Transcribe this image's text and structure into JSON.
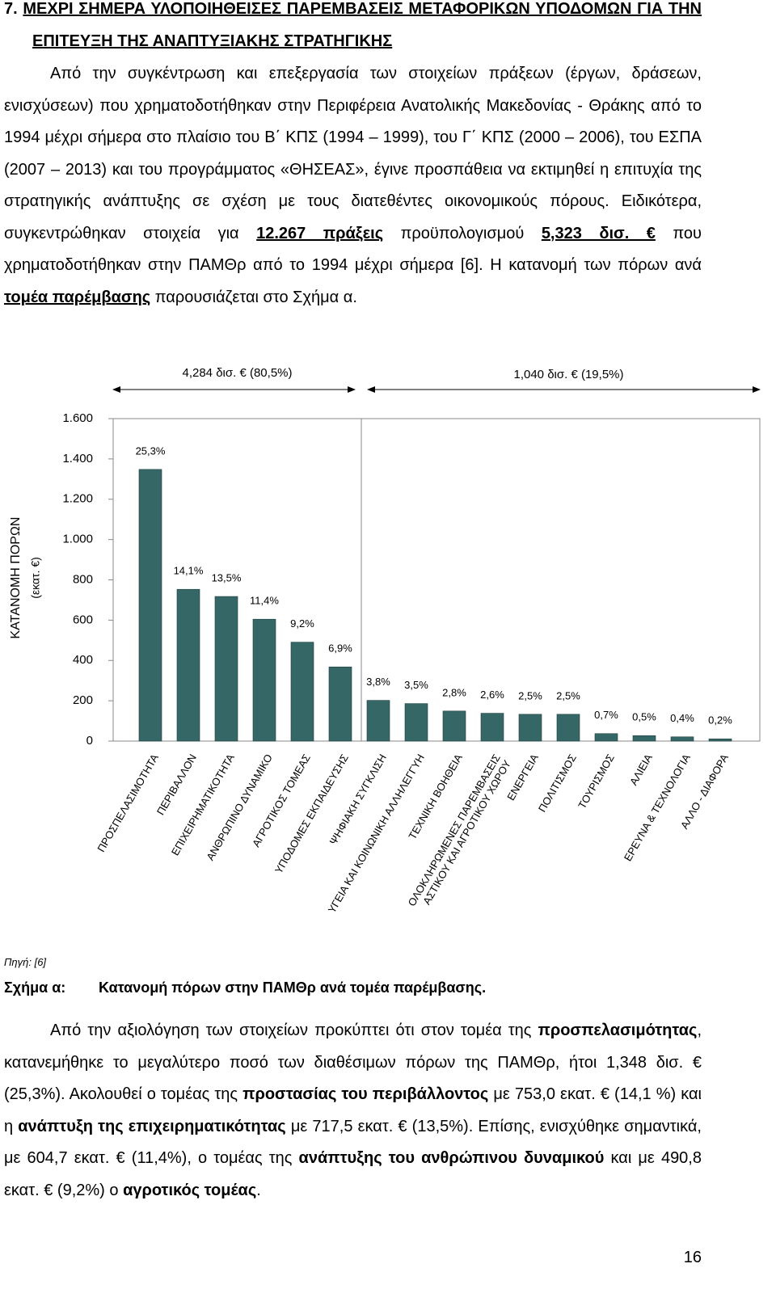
{
  "heading": {
    "number": "7.",
    "title": "ΜΕΧΡΙ ΣΗΜΕΡΑ ΥΛΟΠΟΙΗΘΕΙΣΕΣ ΠΑΡΕΜΒΑΣΕΙΣ ΜΕΤΑΦΟΡΙΚΩΝ ΥΠΟΔΟΜΩΝ ΓΙΑ ΤΗΝ ΕΠΙΤΕΥΞΗ ΤΗΣ ΑΝΑΠΤΥΞΙΑΚΗΣ ΣΤΡΑΤΗΓΙΚΗΣ"
  },
  "intro": [
    "Από την συγκέντρωση και επεξεργασία των στοιχείων πράξεων (έργων, δράσεων, ενισχύσεων) που χρηματοδοτήθηκαν στην Περιφέρεια Ανατολικής Μακεδονίας - Θράκης από το 1994 μέχρι σήμερα στο πλαίσιο του Β΄ ΚΠΣ (1994 – 1999), του Γ΄ ΚΠΣ (2000 – 2006), του ΕΣΠΑ (2007 – 2013) και του προγράμματος «ΘΗΣΕΑΣ», έγινε προσπάθεια να εκτιμηθεί η επιτυχία της στρατηγικής ανάπτυξης σε σχέση με τους διατεθέντες οικονομικούς πόρους. Ειδικότερα, συγκεντρώθηκαν στοιχεία για ",
    "12.267 πράξεις",
    " προϋπολογισμού ",
    "5,323 δισ. €",
    " που χρηματοδοτήθηκαν στην ΠΑΜΘρ από το 1994 μέχρι σήμερα [6]. Η κατανομή των πόρων ανά ",
    "τομέα παρέμβασης",
    " παρουσιάζεται στο Σχήμα α."
  ],
  "chart_data": {
    "type": "bar",
    "ylabel": [
      "ΚΑΤΑΝΟΜΗ ΠΟΡΩΝ",
      "(εκατ. €)"
    ],
    "annotations": [
      "4,284 δισ. € (80,5%)",
      "1,040 δισ. € (19,5%)"
    ],
    "categories": [
      "ΠΡΟΣΠΕΛΑΣΙΜΟΤΗΤΑ",
      "ΠΕΡΙΒΑΛΛΟΝ",
      "ΕΠΙΧΕΙΡΗΜΑΤΙΚΟΤΗΤΑ",
      "ΑΝΘΡΩΠΙΝΟ ΔΥΝΑΜΙΚΟ",
      "ΑΓΡΟΤΙΚΟΣ ΤΟΜΕΑΣ",
      "ΥΠΟΔΟΜΕΣ ΕΚΠΑΙΔΕΥΣΗΣ",
      "ΨΗΦΙΑΚΗ ΣΥΓΚΛΙΣΗ",
      "ΥΓΕΙΑ ΚΑΙ ΚΟΙΝΩΝΙΚΗ ΑΛΛΗΛΕΓΓΥΗ",
      "ΤΕΧΝΙΚΗ ΒΟΗΘΕΙΑ",
      "ΟΛΟΚΛΗΡΩΜΕΝΕΣ ΠΑΡΕΜΒΑΣΕΙΣ\nΑΣΤΙΚΟΥ ΚΑΙ ΑΓΡΟΤΙΚΟΥ ΧΩΡΟΥ",
      "ΕΝΕΡΓΕΙΑ",
      "ΠΟΛΙΤΙΣΜΟΣ",
      "ΤΟΥΡΙΣΜΟΣ",
      "ΑΛΙΕΙΑ",
      "ΕΡΕΥΝΑ & ΤΕΧΝΟΛΟΓΙΑ",
      "ΑΛΛΟ - ΔΙΑΦΟΡΑ"
    ],
    "values": [
      1348,
      753.0,
      717.5,
      604.7,
      490.8,
      368,
      202,
      186,
      149,
      138,
      133,
      133,
      37,
      27,
      21,
      11
    ],
    "share_labels": [
      "25,3%",
      "14,1%",
      "13,5%",
      "11,4%",
      "9,2%",
      "6,9%",
      "3,8%",
      "3,5%",
      "2,8%",
      "2,6%",
      "2,5%",
      "2,5%",
      "0,7%",
      "0,5%",
      "0,4%",
      "0,2%"
    ],
    "color": "#356767",
    "ylim": [
      0,
      1600
    ],
    "yticks": [
      0,
      200,
      400,
      600,
      800,
      {
        "value": 1000,
        "label": "1.000"
      },
      {
        "value": 1200,
        "label": "1.200"
      },
      {
        "value": 1400,
        "label": "1.400"
      },
      {
        "value": 1600,
        "label": "1.600"
      }
    ]
  },
  "source": "Πηγή: [6]",
  "caption": {
    "label": "Σχήμα α:",
    "text": "Κατανομή πόρων στην ΠΑΜΘρ ανά τομέα παρέμβασης."
  },
  "analysis": [
    "Από την αξιολόγηση των στοιχείων προκύπτει ότι στον τομέα της ",
    "προσπελασιμότητας",
    ", κατανεμήθηκε το μεγαλύτερο ποσό των διαθέσιμων πόρων της ΠΑΜΘρ, ήτοι 1,348 δισ. € (25,3%). Ακολουθεί ο τομέας της ",
    "προστασίας του περιβάλλοντος",
    " με 753,0 εκατ. € (14,1 %) και η ",
    "ανάπτυξη της επιχειρηματικότητας",
    " με 717,5 εκατ. € (13,5%). Επίσης, ενισχύθηκε σημαντικά, με 604,7 εκατ. € (11,4%), ο τομέας της ",
    "ανάπτυξης του ανθρώπινου δυναμικού",
    " και με 490,8 εκατ. € (9,2%) ο ",
    "αγροτικός τομέας",
    "."
  ],
  "page_number": "16"
}
